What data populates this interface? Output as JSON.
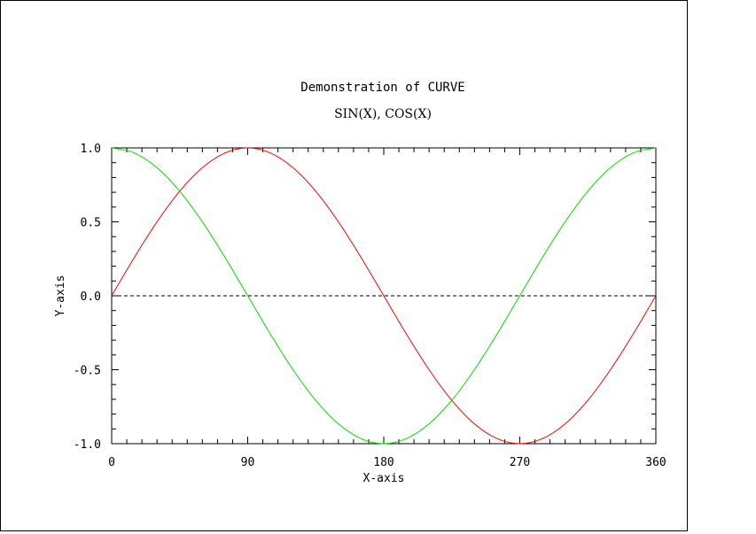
{
  "chart_data": {
    "type": "line",
    "title": "Demonstration of CURVE",
    "subtitle": "SIN(X), COS(X)",
    "xlabel": "X-axis",
    "ylabel": "Y-axis",
    "xlim": [
      0,
      360
    ],
    "ylim": [
      -1.0,
      1.0
    ],
    "x_ticks": [
      0,
      90,
      180,
      270,
      360
    ],
    "x_tick_labels": [
      "0",
      "90",
      "180",
      "270",
      "360"
    ],
    "y_ticks": [
      -1.0,
      -0.5,
      0.0,
      0.5,
      1.0
    ],
    "y_tick_labels": [
      "-1.0",
      "-0.5",
      "0.0",
      "0.5",
      "1.0"
    ],
    "grid": false,
    "reference_line": {
      "y": 0.0,
      "style": "dashed",
      "color": "#000000"
    },
    "x": [
      0,
      15,
      30,
      45,
      60,
      75,
      90,
      105,
      120,
      135,
      150,
      165,
      180,
      195,
      210,
      225,
      240,
      255,
      270,
      285,
      300,
      315,
      330,
      345,
      360
    ],
    "series": [
      {
        "color": "#ff0000",
        "values": [
          0.0,
          0.259,
          0.5,
          0.707,
          0.866,
          0.966,
          1.0,
          0.966,
          0.866,
          0.707,
          0.5,
          0.259,
          0.0,
          -0.259,
          -0.5,
          -0.707,
          -0.866,
          -0.966,
          -1.0,
          -0.966,
          -0.866,
          -0.707,
          -0.5,
          -0.259,
          0.0
        ]
      },
      {
        "color": "#00dd00",
        "values": [
          1.0,
          0.966,
          0.866,
          0.707,
          0.5,
          0.259,
          0.0,
          -0.259,
          -0.5,
          -0.707,
          -0.866,
          -0.966,
          -1.0,
          -0.966,
          -0.866,
          -0.707,
          -0.5,
          -0.259,
          0.0,
          0.259,
          0.5,
          0.707,
          0.866,
          0.966,
          1.0
        ]
      }
    ]
  }
}
